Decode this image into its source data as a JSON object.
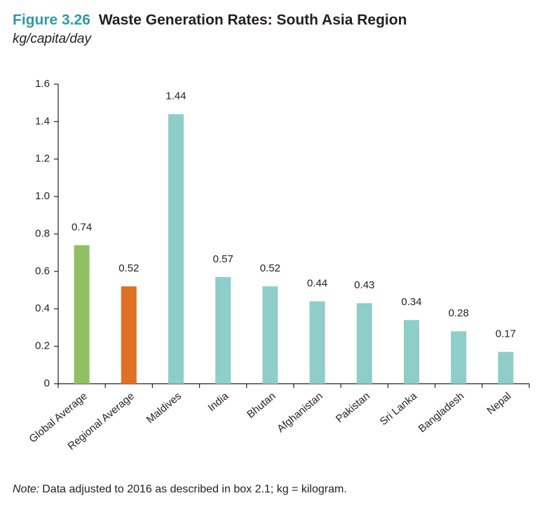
{
  "chart_data": {
    "type": "bar",
    "figure_label": "Figure 3.26",
    "title": "Waste Generation Rates: South Asia Region",
    "subtitle": "kg/capita/day",
    "categories": [
      "Global Average",
      "Regional Average",
      "Maldives",
      "India",
      "Bhutan",
      "Afghanistan",
      "Pakistan",
      "Sri Lanka",
      "Bangladesh",
      "Nepal"
    ],
    "values": [
      0.74,
      0.52,
      1.44,
      0.57,
      0.52,
      0.44,
      0.43,
      0.34,
      0.28,
      0.17
    ],
    "colors": [
      "#92bf63",
      "#e07026",
      "#8ecdc8",
      "#8ecdc8",
      "#8ecdc8",
      "#8ecdc8",
      "#8ecdc8",
      "#8ecdc8",
      "#8ecdc8",
      "#8ecdc8"
    ],
    "ylim": [
      0,
      1.6
    ],
    "yticks": [
      0,
      0.2,
      0.4,
      0.6,
      0.8,
      {
        "value": 1,
        "label": "1.0"
      },
      1.2,
      1.4,
      1.6
    ],
    "grid": false,
    "note": {
      "label": "Note:",
      "text": "Data adjusted to 2016 as described in box 2.1; kg = kilogram."
    }
  }
}
